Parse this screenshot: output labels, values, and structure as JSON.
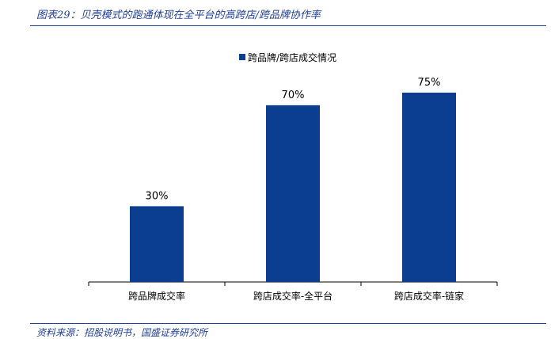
{
  "figure": {
    "title": "图表29：贝壳模式的跑通体现在全平台的高跨店/跨品牌协作率",
    "source": "资料来源：招股说明书，国盛证券研究所"
  },
  "chart_data": {
    "type": "bar",
    "categories": [
      "跨品牌成交率",
      "跨店成交率-全平台",
      "跨店成交率-链家"
    ],
    "series": [
      {
        "name": "跨品牌/跨店成交情况",
        "values": [
          30,
          70,
          75
        ],
        "labels": [
          "30%",
          "70%",
          "75%"
        ],
        "color": "#0b3d91"
      }
    ],
    "ylim": [
      0,
      80
    ],
    "grid": false,
    "legend_position": "top-center"
  }
}
